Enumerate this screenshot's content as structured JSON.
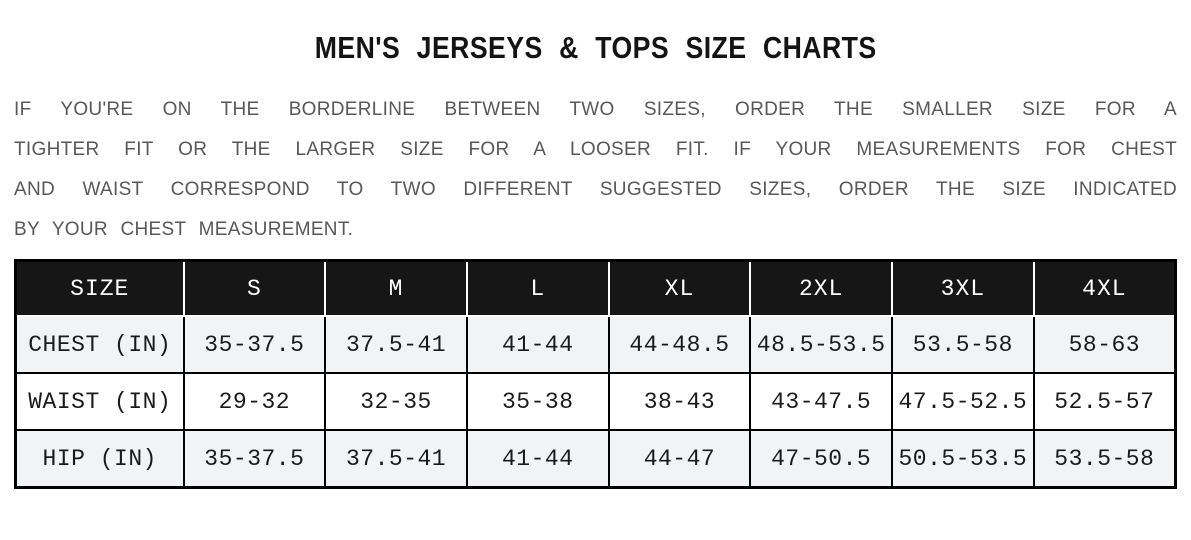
{
  "page": {
    "title": "MEN'S JERSEYS & TOPS SIZE CHARTS",
    "intro_lines": [
      "IF YOU'RE ON THE BORDERLINE BETWEEN TWO SIZES, ORDER THE SMALLER SIZE FOR A",
      "TIGHTER FIT OR THE LARGER SIZE FOR A LOOSER FIT. IF YOUR MEASUREMENTS FOR CHEST",
      "AND WAIST CORRESPOND TO TWO DIFFERENT SUGGESTED SIZES, ORDER THE SIZE INDICATED",
      "BY YOUR CHEST MEASUREMENT."
    ]
  },
  "size_table": {
    "headers": [
      "SIZE",
      "S",
      "M",
      "L",
      "XL",
      "2XL",
      "3XL",
      "4XL"
    ],
    "rows": [
      {
        "label": "CHEST (IN)",
        "values": [
          "35-37.5",
          "37.5-41",
          "41-44",
          "44-48.5",
          "48.5-53.5",
          "53.5-58",
          "58-63"
        ]
      },
      {
        "label": "WAIST (IN)",
        "values": [
          "29-32",
          "32-35",
          "35-38",
          "38-43",
          "43-47.5",
          "47.5-52.5",
          "52.5-57"
        ]
      },
      {
        "label": "HIP (IN)",
        "values": [
          "35-37.5",
          "37.5-41",
          "41-44",
          "44-47",
          "47-50.5",
          "50.5-53.5",
          "53.5-58"
        ]
      }
    ]
  },
  "chart_data": {
    "type": "table",
    "title": "MEN'S JERSEYS & TOPS SIZE CHARTS",
    "columns": [
      "SIZE",
      "S",
      "M",
      "L",
      "XL",
      "2XL",
      "3XL",
      "4XL"
    ],
    "rows": [
      [
        "CHEST (IN)",
        "35-37.5",
        "37.5-41",
        "41-44",
        "44-48.5",
        "48.5-53.5",
        "53.5-58",
        "58-63"
      ],
      [
        "WAIST (IN)",
        "29-32",
        "32-35",
        "35-38",
        "38-43",
        "43-47.5",
        "47.5-52.5",
        "52.5-57"
      ],
      [
        "HIP (IN)",
        "35-37.5",
        "37.5-41",
        "41-44",
        "44-47",
        "47-50.5",
        "50.5-53.5",
        "53.5-58"
      ]
    ]
  },
  "colors": {
    "header_bg": "#161616",
    "header_text": "#ffffff",
    "row_alt_bg": "#f2f3f5",
    "row_bg": "#ffffff",
    "table_border": "#000000",
    "title_text": "#141414",
    "intro_text": "#58585a"
  }
}
